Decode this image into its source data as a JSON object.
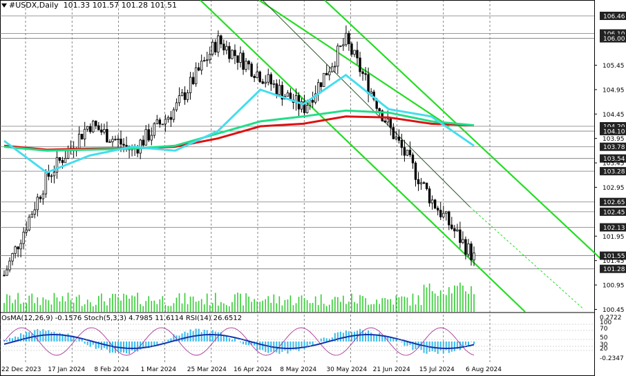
{
  "header": {
    "symbol": "#USDX,Daily",
    "ohlc": "101.33 101.57 101.28 101.51"
  },
  "indicator_label": "OsMA(12,26,9) -0.1576  Stoch(5,3,3) 4.7985 11.6114  RSI(14) 26.6512",
  "colors": {
    "candles": "#000000",
    "ema_red": "#dd1111",
    "ema_green": "#22dd88",
    "ema_cyan": "#44ddee",
    "channel": "#22dd22",
    "volume": "#33cc33",
    "histogram": "#33bbee",
    "oscillator_line": "#1133aa",
    "stoch_line": "#aa3399",
    "price_labels": "#222222"
  },
  "chart_data": {
    "type": "line",
    "title": "#USDX,Daily",
    "x_tick_labels": [
      "22 Dec 2023",
      "17 Jan 2024",
      "8 Feb 2024",
      "1 Mar 2024",
      "25 Mar 2024",
      "16 Apr 2024",
      "8 May 2024",
      "30 May 2024",
      "21 Jun 2024",
      "15 Jul 2024",
      "6 Aug 2024"
    ],
    "y_tick_labels": [
      106.46,
      106.1,
      106.0,
      105.45,
      104.95,
      104.45,
      104.2,
      104.1,
      103.95,
      103.78,
      103.54,
      103.45,
      103.28,
      102.95,
      102.65,
      102.45,
      102.13,
      101.95,
      101.55,
      101.45,
      101.28,
      100.95,
      100.45
    ],
    "ylim": [
      100.4,
      106.7
    ],
    "highlighted_levels": [
      106.46,
      106.1,
      106.0,
      104.2,
      104.1,
      103.78,
      103.54,
      103.28,
      102.65,
      102.45,
      102.13,
      101.55,
      101.28
    ],
    "series": [
      {
        "name": "Close",
        "x": [
          "22 Dec 2023",
          "17 Jan 2024",
          "8 Feb 2024",
          "1 Mar 2024",
          "25 Mar 2024",
          "16 Apr 2024",
          "8 May 2024",
          "30 May 2024",
          "21 Jun 2024",
          "15 Jul 2024",
          "6 Aug 2024",
          "Last"
        ],
        "values": [
          101.15,
          103.15,
          104.25,
          103.7,
          104.55,
          105.95,
          105.25,
          104.55,
          105.95,
          104.2,
          102.7,
          101.51
        ]
      },
      {
        "name": "",
        "x": [
          "22 Dec 2023",
          "17 Jan 2024",
          "8 Feb 2024",
          "1 Mar 2024",
          "25 Mar 2024",
          "16 Apr 2024",
          "8 May 2024",
          "30 May 2024",
          "21 Jun 2024",
          "15 Jul 2024",
          "6 Aug 2024",
          "Last"
        ],
        "values": [
          103.8,
          103.72,
          103.74,
          103.75,
          103.78,
          103.95,
          104.2,
          104.25,
          104.4,
          104.38,
          104.25,
          104.22
        ]
      },
      {
        "name": "",
        "x": [
          "22 Dec 2023",
          "17 Jan 2024",
          "8 Feb 2024",
          "1 Mar 2024",
          "25 Mar 2024",
          "16 Apr 2024",
          "8 May 2024",
          "30 May 2024",
          "21 Jun 2024",
          "15 Jul 2024",
          "6 Aug 2024",
          "Last"
        ],
        "values": [
          103.78,
          103.7,
          103.72,
          103.74,
          103.8,
          104.05,
          104.3,
          104.4,
          104.52,
          104.48,
          104.3,
          104.22
        ]
      },
      {
        "name": "",
        "x": [
          "22 Dec 2023",
          "17 Jan 2024",
          "8 Feb 2024",
          "1 Mar 2024",
          "25 Mar 2024",
          "16 Apr 2024",
          "8 May 2024",
          "30 May 2024",
          "21 Jun 2024",
          "15 Jul 2024",
          "6 Aug 2024",
          "Last"
        ],
        "values": [
          103.9,
          103.25,
          103.6,
          103.78,
          103.7,
          104.1,
          104.95,
          104.65,
          105.25,
          104.55,
          104.4,
          103.8
        ]
      }
    ]
  }
}
